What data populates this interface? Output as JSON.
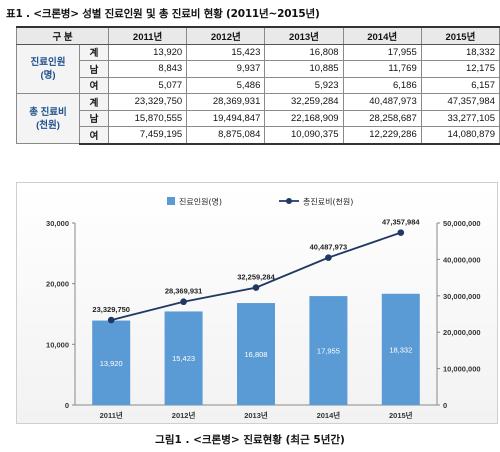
{
  "table": {
    "caption": "표1 . <크론병> 성별 진료인원 및 총 진료비 현황 (2011년~2015년)",
    "header_label": "구 분",
    "years": [
      "2011년",
      "2012년",
      "2013년",
      "2014년",
      "2015년"
    ],
    "groups": [
      {
        "label": "진료인원\n(명)",
        "rows": [
          {
            "sub": "계",
            "values": [
              "13,920",
              "15,423",
              "16,808",
              "17,955",
              "18,332"
            ]
          },
          {
            "sub": "남",
            "values": [
              "8,843",
              "9,937",
              "10,885",
              "11,769",
              "12,175"
            ]
          },
          {
            "sub": "여",
            "values": [
              "5,077",
              "5,486",
              "5,923",
              "6,186",
              "6,157"
            ]
          }
        ]
      },
      {
        "label": "총 진료비\n(천원)",
        "rows": [
          {
            "sub": "계",
            "values": [
              "23,329,750",
              "28,369,931",
              "32,259,284",
              "40,487,973",
              "47,357,984"
            ]
          },
          {
            "sub": "남",
            "values": [
              "15,870,555",
              "19,494,847",
              "22,168,909",
              "28,258,687",
              "33,277,105"
            ]
          },
          {
            "sub": "여",
            "values": [
              "7,459,195",
              "8,875,084",
              "10,090,375",
              "12,229,286",
              "14,080,879"
            ]
          }
        ]
      }
    ]
  },
  "chart_data": {
    "type": "bar",
    "categories": [
      "2011년",
      "2012년",
      "2013년",
      "2014년",
      "2015년"
    ],
    "series": [
      {
        "name": "진료인원(명)",
        "type": "bar",
        "axis": "left",
        "values": [
          13920,
          15423,
          16808,
          17955,
          18332
        ],
        "color": "#5b9bd5"
      },
      {
        "name": "총진료비(천원)",
        "type": "line",
        "axis": "right",
        "values": [
          23329750,
          28369931,
          32259284,
          40487973,
          47357984
        ],
        "color": "#1f3864"
      }
    ],
    "bar_labels": [
      "13,920",
      "15,423",
      "16,808",
      "17,955",
      "18,332"
    ],
    "line_labels": [
      "23,329,750",
      "28,369,931",
      "32,259,284",
      "40,487,973",
      "47,357,984"
    ],
    "y_left": {
      "ticks": [
        "0",
        "10,000",
        "20,000",
        "30,000"
      ],
      "range": [
        0,
        30000
      ]
    },
    "y_right": {
      "ticks": [
        "0",
        "10,000,000",
        "20,000,000",
        "30,000,000",
        "40,000,000",
        "50,000,000"
      ],
      "range": [
        0,
        50000000
      ]
    },
    "legend_position": "top-center",
    "grid": false
  },
  "chart_caption": "그림1 . <크론병> 진료현황 (최근 5년간)"
}
